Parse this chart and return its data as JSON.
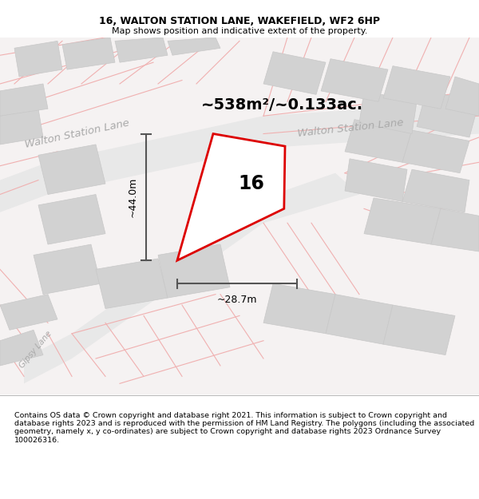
{
  "title": "16, WALTON STATION LANE, WAKEFIELD, WF2 6HP",
  "subtitle": "Map shows position and indicative extent of the property.",
  "footer": "Contains OS data © Crown copyright and database right 2021. This information is subject to Crown copyright and database rights 2023 and is reproduced with the permission of HM Land Registry. The polygons (including the associated geometry, namely x, y co-ordinates) are subject to Crown copyright and database rights 2023 Ordnance Survey 100026316.",
  "area_label": "~538m²/~0.133ac.",
  "height_label": "~44.0m",
  "width_label": "~28.7m",
  "number_label": "16",
  "road_label_tl": "Walton Station Lane",
  "road_label_tr": "Walton Station Lane",
  "gipsy_lane": "Gipsy Lane",
  "title_fontsize": 9,
  "subtitle_fontsize": 8,
  "footer_fontsize": 6.8,
  "area_fontsize": 14,
  "number_fontsize": 17,
  "road_fontsize": 9.5,
  "map_bg": "#f5f2f2",
  "property_color": "#dd0000",
  "property_fill": "#ffffff",
  "block_color": "#d2d2d2",
  "block_edge": "#c8c8c8",
  "street_color": "#f0b0b0",
  "road_fill": "#eaeaea",
  "dim_color": "#555555"
}
